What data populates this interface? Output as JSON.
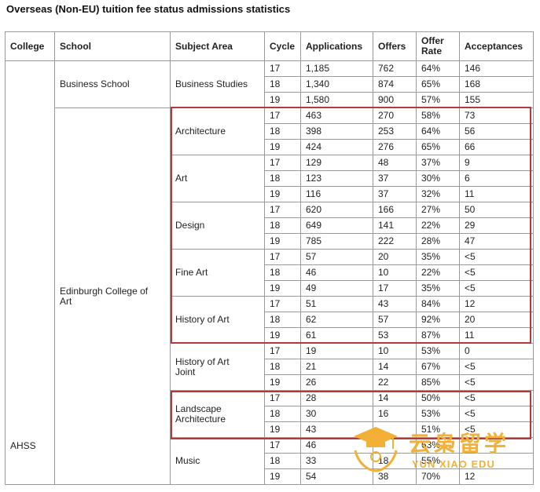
{
  "title": "Overseas (Non-EU) tuition fee status admissions statistics",
  "headers": {
    "college": "College",
    "school": "School",
    "subject": "Subject Area",
    "cycle": "Cycle",
    "applications": "Applications",
    "offers": "Offers",
    "offer_rate_line1": "Offer",
    "offer_rate_line2": "Rate",
    "acceptances": "Acceptances"
  },
  "college": "AHSS",
  "schools": [
    {
      "name": "Business School"
    },
    {
      "name_line1": "Edinburgh College of",
      "name_line2": "Art"
    }
  ],
  "subjects": [
    {
      "name": "Business Studies",
      "rows": [
        [
          "17",
          "1,185",
          "762",
          "64%",
          "146"
        ],
        [
          "18",
          "1,340",
          "874",
          "65%",
          "168"
        ],
        [
          "19",
          "1,580",
          "900",
          "57%",
          "155"
        ]
      ]
    },
    {
      "name": "Architecture",
      "rows": [
        [
          "17",
          "463",
          "270",
          "58%",
          "73"
        ],
        [
          "18",
          "398",
          "253",
          "64%",
          "56"
        ],
        [
          "19",
          "424",
          "276",
          "65%",
          "66"
        ]
      ]
    },
    {
      "name": "Art",
      "rows": [
        [
          "17",
          "129",
          "48",
          "37%",
          "9"
        ],
        [
          "18",
          "123",
          "37",
          "30%",
          "6"
        ],
        [
          "19",
          "116",
          "37",
          "32%",
          "11"
        ]
      ]
    },
    {
      "name": "Design",
      "rows": [
        [
          "17",
          "620",
          "166",
          "27%",
          "50"
        ],
        [
          "18",
          "649",
          "141",
          "22%",
          "29"
        ],
        [
          "19",
          "785",
          "222",
          "28%",
          "47"
        ]
      ]
    },
    {
      "name": "Fine Art",
      "rows": [
        [
          "17",
          "57",
          "20",
          "35%",
          "<5"
        ],
        [
          "18",
          "46",
          "10",
          "22%",
          "<5"
        ],
        [
          "19",
          "49",
          "17",
          "35%",
          "<5"
        ]
      ]
    },
    {
      "name": "History of Art",
      "rows": [
        [
          "17",
          "51",
          "43",
          "84%",
          "12"
        ],
        [
          "18",
          "62",
          "57",
          "92%",
          "20"
        ],
        [
          "19",
          "61",
          "53",
          "87%",
          "11"
        ]
      ]
    },
    {
      "name_line1": "History of Art",
      "name_line2": "Joint",
      "rows": [
        [
          "17",
          "19",
          "10",
          "53%",
          "0"
        ],
        [
          "18",
          "21",
          "14",
          "67%",
          "<5"
        ],
        [
          "19",
          "26",
          "22",
          "85%",
          "<5"
        ]
      ]
    },
    {
      "name_line1": "Landscape",
      "name_line2": "Architecture",
      "rows": [
        [
          "17",
          "28",
          "14",
          "50%",
          "<5"
        ],
        [
          "18",
          "30",
          "16",
          "53%",
          "<5"
        ],
        [
          "19",
          "43",
          "",
          "51%",
          "<5"
        ]
      ]
    },
    {
      "name": "Music",
      "rows": [
        [
          "17",
          "46",
          "",
          "63%",
          ""
        ],
        [
          "18",
          "33",
          "18",
          "55%",
          ""
        ],
        [
          "19",
          "54",
          "38",
          "70%",
          "12"
        ]
      ]
    }
  ],
  "watermark": {
    "cn": "云枭留学",
    "en": "YUN XIAO EDU",
    "color": "#f2b036"
  },
  "highlight_color": "#b23a3a"
}
